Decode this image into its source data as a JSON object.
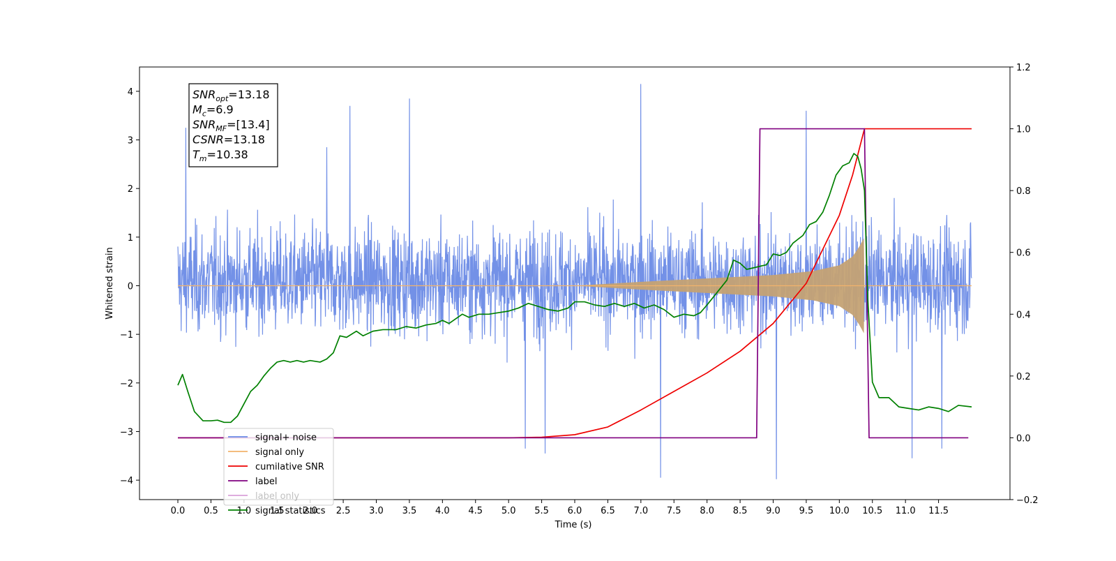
{
  "chart_data": {
    "type": "line",
    "title": "",
    "xlabel": "Time (s)",
    "ylabel": "Whitened strain",
    "xlim": [
      -0.58,
      12.58
    ],
    "ylim": [
      -4.4,
      4.5
    ],
    "y2lim": [
      -0.2,
      1.2
    ],
    "x_ticks": [
      0.0,
      0.5,
      1.0,
      1.5,
      2.0,
      2.5,
      3.0,
      3.5,
      4.0,
      4.5,
      5.0,
      5.5,
      6.0,
      6.5,
      7.0,
      7.5,
      8.0,
      8.5,
      9.0,
      9.5,
      10.0,
      10.5,
      11.0,
      11.5
    ],
    "x_tick_labels": [
      "0.0",
      "0.5",
      "1.0",
      "1.5",
      "2.0",
      "2.5",
      "3.0",
      "3.5",
      "4.0",
      "4.5",
      "5.0",
      "5.5",
      "6.0",
      "6.5",
      "7.0",
      "7.5",
      "8.0",
      "8.5",
      "9.0",
      "9.5",
      "10.0",
      "10.5",
      "11.0",
      "11.5"
    ],
    "y_ticks": [
      -4,
      -3,
      -2,
      -1,
      0,
      1,
      2,
      3,
      4
    ],
    "y_tick_labels": [
      "−4",
      "−3",
      "−2",
      "−1",
      "0",
      "1",
      "2",
      "3",
      "4"
    ],
    "y2_ticks": [
      -0.2,
      0.0,
      0.2,
      0.4,
      0.6,
      0.8,
      1.0,
      1.2
    ],
    "y2_tick_labels": [
      "−0.2",
      "0.0",
      "0.2",
      "0.4",
      "0.6",
      "0.8",
      "1.0",
      "1.2"
    ],
    "grid": false,
    "legend_position": "lower-left",
    "series": [
      {
        "name": "signal+ noise",
        "axis": "left",
        "kind": "noise",
        "color": "#6b8be6",
        "x_range": [
          0.0,
          12.0
        ],
        "typical_envelope": [
          -2.2,
          2.4
        ],
        "peaks": [
          {
            "x": 0.12,
            "y": 3.25
          },
          {
            "x": 2.25,
            "y": 2.85
          },
          {
            "x": 2.6,
            "y": 3.7
          },
          {
            "x": 3.5,
            "y": 3.85
          },
          {
            "x": 7.0,
            "y": 4.15
          },
          {
            "x": 9.5,
            "y": 3.6
          },
          {
            "x": 7.3,
            "y": -3.95
          },
          {
            "x": 9.05,
            "y": -3.98
          },
          {
            "x": 5.25,
            "y": -3.35
          },
          {
            "x": 5.55,
            "y": -3.45
          },
          {
            "x": 11.1,
            "y": -3.55
          },
          {
            "x": 11.55,
            "y": -3.35
          }
        ]
      },
      {
        "name": "signal only",
        "axis": "left",
        "kind": "chirp",
        "color": "#f2b36b",
        "x_range": [
          0.0,
          12.0
        ],
        "envelope": [
          {
            "x": 6.0,
            "y": 0.0
          },
          {
            "x": 7.0,
            "y": 0.08
          },
          {
            "x": 8.0,
            "y": 0.15
          },
          {
            "x": 9.0,
            "y": 0.22
          },
          {
            "x": 9.6,
            "y": 0.3
          },
          {
            "x": 10.0,
            "y": 0.42
          },
          {
            "x": 10.2,
            "y": 0.6
          },
          {
            "x": 10.3,
            "y": 0.8
          },
          {
            "x": 10.38,
            "y": 1.0
          }
        ]
      },
      {
        "name": "cumilative SNR",
        "axis": "right",
        "color": "#ee0000",
        "points": [
          {
            "x": 0.0,
            "y": 0.0
          },
          {
            "x": 5.0,
            "y": 0.0
          },
          {
            "x": 5.5,
            "y": 0.002
          },
          {
            "x": 6.0,
            "y": 0.01
          },
          {
            "x": 6.5,
            "y": 0.035
          },
          {
            "x": 7.0,
            "y": 0.09
          },
          {
            "x": 7.5,
            "y": 0.15
          },
          {
            "x": 8.0,
            "y": 0.21
          },
          {
            "x": 8.5,
            "y": 0.28
          },
          {
            "x": 9.0,
            "y": 0.37
          },
          {
            "x": 9.5,
            "y": 0.5
          },
          {
            "x": 10.0,
            "y": 0.72
          },
          {
            "x": 10.2,
            "y": 0.85
          },
          {
            "x": 10.38,
            "y": 1.0
          },
          {
            "x": 12.0,
            "y": 1.0
          }
        ]
      },
      {
        "name": "label",
        "axis": "right",
        "color": "#800080",
        "points": [
          {
            "x": 0.0,
            "y": 0.0
          },
          {
            "x": 8.75,
            "y": 0.0
          },
          {
            "x": 8.8,
            "y": 1.0
          },
          {
            "x": 10.38,
            "y": 1.0
          },
          {
            "x": 10.45,
            "y": 0.0
          },
          {
            "x": 11.95,
            "y": 0.0
          }
        ]
      },
      {
        "name": "label only",
        "axis": "right",
        "color": "#d9a0d9",
        "points": []
      },
      {
        "name": "signal statistics",
        "axis": "right",
        "color": "#008000",
        "points": [
          {
            "x": 0.0,
            "y": 0.17
          },
          {
            "x": 0.07,
            "y": 0.205
          },
          {
            "x": 0.15,
            "y": 0.15
          },
          {
            "x": 0.25,
            "y": 0.085
          },
          {
            "x": 0.38,
            "y": 0.055
          },
          {
            "x": 0.5,
            "y": 0.055
          },
          {
            "x": 0.6,
            "y": 0.057
          },
          {
            "x": 0.7,
            "y": 0.05
          },
          {
            "x": 0.8,
            "y": 0.05
          },
          {
            "x": 0.9,
            "y": 0.07
          },
          {
            "x": 1.0,
            "y": 0.11
          },
          {
            "x": 1.1,
            "y": 0.15
          },
          {
            "x": 1.2,
            "y": 0.17
          },
          {
            "x": 1.3,
            "y": 0.2
          },
          {
            "x": 1.4,
            "y": 0.225
          },
          {
            "x": 1.5,
            "y": 0.245
          },
          {
            "x": 1.6,
            "y": 0.25
          },
          {
            "x": 1.7,
            "y": 0.245
          },
          {
            "x": 1.8,
            "y": 0.25
          },
          {
            "x": 1.9,
            "y": 0.245
          },
          {
            "x": 2.0,
            "y": 0.25
          },
          {
            "x": 2.15,
            "y": 0.245
          },
          {
            "x": 2.25,
            "y": 0.255
          },
          {
            "x": 2.35,
            "y": 0.275
          },
          {
            "x": 2.45,
            "y": 0.33
          },
          {
            "x": 2.55,
            "y": 0.325
          },
          {
            "x": 2.7,
            "y": 0.345
          },
          {
            "x": 2.8,
            "y": 0.33
          },
          {
            "x": 2.95,
            "y": 0.345
          },
          {
            "x": 3.1,
            "y": 0.35
          },
          {
            "x": 3.3,
            "y": 0.35
          },
          {
            "x": 3.45,
            "y": 0.36
          },
          {
            "x": 3.6,
            "y": 0.355
          },
          {
            "x": 3.75,
            "y": 0.365
          },
          {
            "x": 3.9,
            "y": 0.37
          },
          {
            "x": 4.0,
            "y": 0.38
          },
          {
            "x": 4.1,
            "y": 0.37
          },
          {
            "x": 4.2,
            "y": 0.385
          },
          {
            "x": 4.3,
            "y": 0.4
          },
          {
            "x": 4.4,
            "y": 0.39
          },
          {
            "x": 4.55,
            "y": 0.4
          },
          {
            "x": 4.7,
            "y": 0.4
          },
          {
            "x": 4.85,
            "y": 0.405
          },
          {
            "x": 5.0,
            "y": 0.41
          },
          {
            "x": 5.15,
            "y": 0.42
          },
          {
            "x": 5.3,
            "y": 0.435
          },
          {
            "x": 5.45,
            "y": 0.425
          },
          {
            "x": 5.6,
            "y": 0.415
          },
          {
            "x": 5.75,
            "y": 0.41
          },
          {
            "x": 5.9,
            "y": 0.42
          },
          {
            "x": 6.0,
            "y": 0.44
          },
          {
            "x": 6.15,
            "y": 0.44
          },
          {
            "x": 6.3,
            "y": 0.43
          },
          {
            "x": 6.45,
            "y": 0.425
          },
          {
            "x": 6.6,
            "y": 0.435
          },
          {
            "x": 6.75,
            "y": 0.425
          },
          {
            "x": 6.9,
            "y": 0.435
          },
          {
            "x": 7.05,
            "y": 0.42
          },
          {
            "x": 7.2,
            "y": 0.43
          },
          {
            "x": 7.35,
            "y": 0.415
          },
          {
            "x": 7.5,
            "y": 0.39
          },
          {
            "x": 7.65,
            "y": 0.4
          },
          {
            "x": 7.8,
            "y": 0.395
          },
          {
            "x": 7.9,
            "y": 0.405
          },
          {
            "x": 8.0,
            "y": 0.43
          },
          {
            "x": 8.15,
            "y": 0.47
          },
          {
            "x": 8.3,
            "y": 0.51
          },
          {
            "x": 8.4,
            "y": 0.575
          },
          {
            "x": 8.5,
            "y": 0.565
          },
          {
            "x": 8.6,
            "y": 0.545
          },
          {
            "x": 8.7,
            "y": 0.55
          },
          {
            "x": 8.8,
            "y": 0.555
          },
          {
            "x": 8.9,
            "y": 0.56
          },
          {
            "x": 9.0,
            "y": 0.595
          },
          {
            "x": 9.1,
            "y": 0.59
          },
          {
            "x": 9.2,
            "y": 0.6
          },
          {
            "x": 9.3,
            "y": 0.63
          },
          {
            "x": 9.45,
            "y": 0.655
          },
          {
            "x": 9.55,
            "y": 0.69
          },
          {
            "x": 9.65,
            "y": 0.7
          },
          {
            "x": 9.75,
            "y": 0.73
          },
          {
            "x": 9.85,
            "y": 0.785
          },
          {
            "x": 9.95,
            "y": 0.85
          },
          {
            "x": 10.05,
            "y": 0.88
          },
          {
            "x": 10.15,
            "y": 0.89
          },
          {
            "x": 10.22,
            "y": 0.92
          },
          {
            "x": 10.28,
            "y": 0.91
          },
          {
            "x": 10.33,
            "y": 0.87
          },
          {
            "x": 10.38,
            "y": 0.8
          },
          {
            "x": 10.43,
            "y": 0.45
          },
          {
            "x": 10.5,
            "y": 0.18
          },
          {
            "x": 10.6,
            "y": 0.13
          },
          {
            "x": 10.75,
            "y": 0.13
          },
          {
            "x": 10.9,
            "y": 0.1
          },
          {
            "x": 11.05,
            "y": 0.095
          },
          {
            "x": 11.2,
            "y": 0.09
          },
          {
            "x": 11.35,
            "y": 0.1
          },
          {
            "x": 11.5,
            "y": 0.095
          },
          {
            "x": 11.65,
            "y": 0.085
          },
          {
            "x": 11.8,
            "y": 0.105
          },
          {
            "x": 12.0,
            "y": 0.1
          }
        ]
      }
    ],
    "info_box": [
      {
        "sym": "SNR",
        "sub": "opt",
        "val": "=13.18"
      },
      {
        "sym": "M",
        "sub": "c",
        "val": "=6.9"
      },
      {
        "sym": "SNR",
        "sub": "MF",
        "val": "=[13.4]"
      },
      {
        "sym": "CSNR",
        "sub": "",
        "val": "=13.18"
      },
      {
        "sym": "T",
        "sub": "m",
        "val": "=10.38"
      }
    ]
  }
}
